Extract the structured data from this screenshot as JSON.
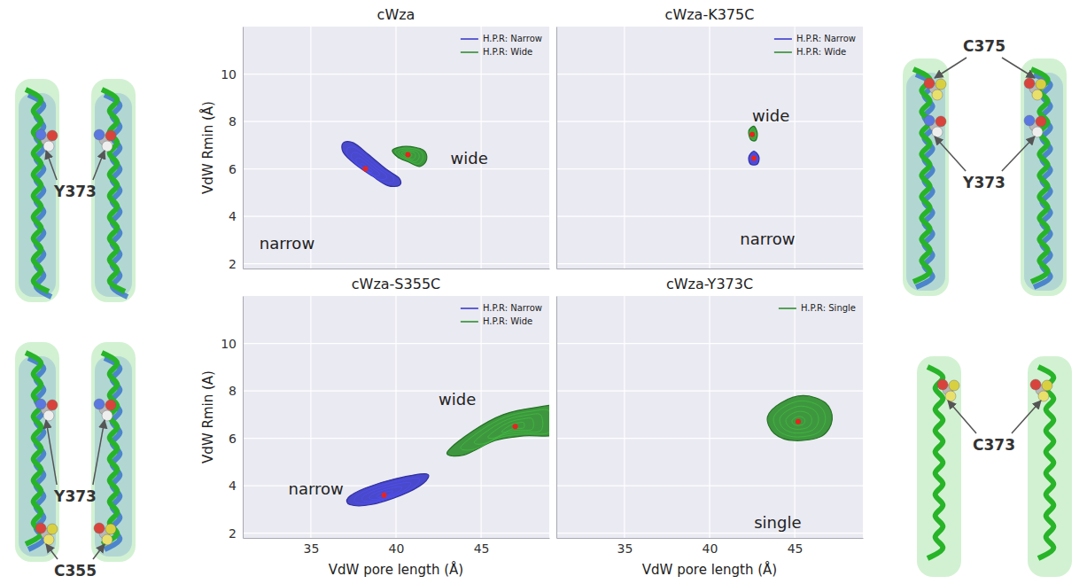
{
  "chart_data": [
    {
      "type": "contour",
      "title": "cWza",
      "ylabel": "VdW Rmin (Å)",
      "xlim": [
        31,
        49
      ],
      "ylim": [
        1.8,
        12
      ],
      "xticks": [
        35,
        40,
        45
      ],
      "yticks": [
        2,
        4,
        6,
        8,
        10
      ],
      "grid": true,
      "legend": "upper right",
      "tick_labels": "y",
      "series": [
        {
          "name": "H.P.R: Narrow",
          "color": "#3b3bc8",
          "x": [
            36.9,
            37.5,
            38.4,
            39.4,
            40.2,
            40.2,
            39.5,
            38.6,
            37.6,
            36.9
          ],
          "y": [
            7.1,
            7.1,
            6.6,
            6.0,
            5.6,
            5.3,
            5.3,
            5.7,
            6.2,
            6.7
          ],
          "peak": [
            38.2,
            6.0
          ]
        },
        {
          "name": "H.P.R: Wide",
          "color": "#2f8f2f",
          "x": [
            39.8,
            40.6,
            41.6,
            41.8,
            41.4,
            40.7,
            40.1
          ],
          "y": [
            6.8,
            6.95,
            6.8,
            6.4,
            6.1,
            6.3,
            6.5
          ],
          "peak": [
            40.7,
            6.6
          ]
        }
      ],
      "annotations": [
        {
          "text": "wide",
          "x": 44.3,
          "y": 6.4
        },
        {
          "text": "narrow",
          "x": 33.6,
          "y": 2.8
        }
      ]
    },
    {
      "type": "contour",
      "title": "cWza-K375C",
      "xlim": [
        31,
        49
      ],
      "ylim": [
        1.8,
        12
      ],
      "xticks": [
        35,
        40,
        45
      ],
      "yticks": [
        2,
        4,
        6,
        8,
        10
      ],
      "grid": true,
      "legend": "upper right",
      "tick_labels": false,
      "series": [
        {
          "name": "H.P.R: Narrow",
          "color": "#3b3bc8",
          "x": [
            42.3,
            42.6,
            42.9,
            42.8,
            42.4
          ],
          "y": [
            6.5,
            6.75,
            6.5,
            6.2,
            6.2
          ],
          "peak": [
            42.6,
            6.45
          ]
        },
        {
          "name": "H.P.R: Wide",
          "color": "#2f8f2f",
          "x": [
            42.3,
            42.6,
            42.8,
            42.7,
            42.4
          ],
          "y": [
            7.6,
            7.8,
            7.5,
            7.2,
            7.25
          ],
          "peak": [
            42.5,
            7.45
          ]
        }
      ],
      "annotations": [
        {
          "text": "wide",
          "x": 43.6,
          "y": 8.2
        },
        {
          "text": "narrow",
          "x": 43.4,
          "y": 3.0
        }
      ]
    },
    {
      "type": "contour",
      "title": "cWza-S355C",
      "xlabel": "VdW pore length (Å)",
      "ylabel": "VdW Rmin (A)",
      "xlim": [
        31,
        49
      ],
      "ylim": [
        1.8,
        12
      ],
      "xticks": [
        35,
        40,
        45
      ],
      "yticks": [
        2,
        4,
        6,
        8,
        10
      ],
      "grid": true,
      "legend": "upper right",
      "tick_labels": true,
      "series": [
        {
          "name": "H.P.R: Narrow",
          "color": "#3b3bc8",
          "x": [
            37.2,
            38.2,
            40.0,
            41.8,
            41.6,
            40.3,
            38.5,
            37.3
          ],
          "y": [
            3.5,
            3.9,
            4.3,
            4.5,
            4.1,
            3.6,
            3.2,
            3.2
          ],
          "peak": [
            39.3,
            3.6
          ]
        },
        {
          "name": "H.P.R: Wide",
          "color": "#2f8f2f",
          "x": [
            43.0,
            44.5,
            46.3,
            48.2,
            49.5,
            49.5,
            47.5,
            45.8,
            44.0
          ],
          "y": [
            5.4,
            6.3,
            7.0,
            7.3,
            7.3,
            6.2,
            6.1,
            5.9,
            5.3
          ],
          "peak": [
            47.0,
            6.5
          ]
        }
      ],
      "annotations": [
        {
          "text": "wide",
          "x": 43.6,
          "y": 7.6
        },
        {
          "text": "narrow",
          "x": 35.3,
          "y": 3.8
        }
      ]
    },
    {
      "type": "contour",
      "title": "cWza-Y373C",
      "xlabel": "VdW pore length (Å)",
      "xlim": [
        31,
        49
      ],
      "ylim": [
        1.8,
        12
      ],
      "xticks": [
        35,
        40,
        45
      ],
      "yticks": [
        2,
        4,
        6,
        8,
        10
      ],
      "grid": true,
      "legend": "upper right",
      "tick_labels": "x",
      "series": [
        {
          "name": "H.P.R: Single",
          "color": "#2f8f2f",
          "x": [
            43.4,
            44.2,
            45.5,
            46.8,
            47.2,
            46.6,
            45.0,
            43.8
          ],
          "y": [
            6.9,
            7.5,
            7.8,
            7.5,
            6.8,
            6.1,
            5.9,
            6.2
          ],
          "peak": [
            45.2,
            6.7
          ]
        }
      ],
      "annotations": [
        {
          "text": "single",
          "x": 44.0,
          "y": 2.4
        }
      ]
    }
  ],
  "structures": [
    {
      "labels": [
        "Y373"
      ]
    },
    {
      "labels": [
        "C375",
        "Y373"
      ]
    },
    {
      "labels": [
        "Y373",
        "C355"
      ]
    },
    {
      "labels": [
        "C373"
      ]
    }
  ]
}
